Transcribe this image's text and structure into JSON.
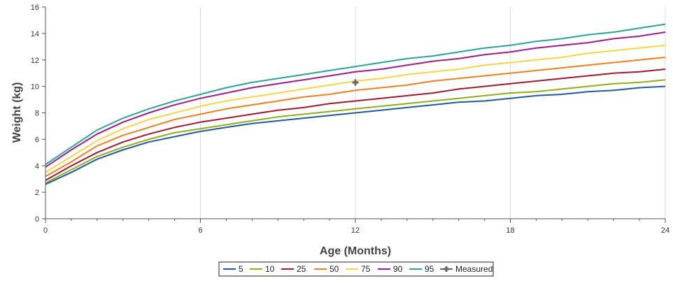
{
  "chart_data": {
    "type": "line",
    "title": "",
    "xlabel": "Age (Months)",
    "ylabel": "Weight (kg)",
    "xlim": [
      0,
      24
    ],
    "ylim": [
      0,
      16
    ],
    "x_ticks": [
      0,
      6,
      12,
      18,
      24
    ],
    "y_ticks": [
      0,
      2,
      4,
      6,
      8,
      10,
      12,
      14,
      16
    ],
    "grid": "vertical",
    "legend_position": "bottom",
    "x": [
      0,
      1,
      2,
      3,
      4,
      5,
      6,
      7,
      8,
      9,
      10,
      11,
      12,
      13,
      14,
      15,
      16,
      17,
      18,
      19,
      20,
      21,
      22,
      23,
      24
    ],
    "series": [
      {
        "name": "5",
        "color": "#1f5a9e",
        "values": [
          2.6,
          3.5,
          4.5,
          5.2,
          5.8,
          6.2,
          6.6,
          6.9,
          7.2,
          7.4,
          7.6,
          7.8,
          8.0,
          8.2,
          8.4,
          8.6,
          8.8,
          8.9,
          9.1,
          9.3,
          9.4,
          9.6,
          9.7,
          9.9,
          10.0
        ]
      },
      {
        "name": "10",
        "color": "#8fae1b",
        "values": [
          2.7,
          3.7,
          4.7,
          5.4,
          6.0,
          6.5,
          6.8,
          7.1,
          7.4,
          7.7,
          7.9,
          8.1,
          8.3,
          8.5,
          8.7,
          8.9,
          9.1,
          9.3,
          9.5,
          9.6,
          9.8,
          10.0,
          10.2,
          10.3,
          10.5
        ]
      },
      {
        "name": "25",
        "color": "#a3192e",
        "values": [
          2.9,
          4.0,
          5.0,
          5.8,
          6.4,
          6.9,
          7.3,
          7.6,
          7.9,
          8.2,
          8.4,
          8.7,
          8.9,
          9.1,
          9.3,
          9.5,
          9.8,
          10.0,
          10.2,
          10.4,
          10.6,
          10.8,
          11.0,
          11.1,
          11.3
        ]
      },
      {
        "name": "50",
        "color": "#f07f22",
        "values": [
          3.2,
          4.3,
          5.5,
          6.3,
          6.9,
          7.5,
          7.9,
          8.3,
          8.6,
          8.9,
          9.2,
          9.4,
          9.7,
          9.9,
          10.1,
          10.4,
          10.6,
          10.8,
          11.0,
          11.2,
          11.4,
          11.6,
          11.8,
          12.0,
          12.2
        ]
      },
      {
        "name": "75",
        "color": "#f8d548",
        "values": [
          3.5,
          4.7,
          5.9,
          6.8,
          7.5,
          8.0,
          8.5,
          8.9,
          9.2,
          9.5,
          9.8,
          10.1,
          10.4,
          10.6,
          10.9,
          11.1,
          11.3,
          11.6,
          11.8,
          12.0,
          12.2,
          12.5,
          12.7,
          12.9,
          13.1
        ]
      },
      {
        "name": "90",
        "color": "#9b1d87",
        "values": [
          3.9,
          5.2,
          6.4,
          7.3,
          8.0,
          8.6,
          9.1,
          9.5,
          9.9,
          10.2,
          10.5,
          10.8,
          11.1,
          11.3,
          11.6,
          11.9,
          12.1,
          12.4,
          12.6,
          12.9,
          13.1,
          13.3,
          13.6,
          13.8,
          14.1
        ]
      },
      {
        "name": "95",
        "color": "#2aa39a",
        "values": [
          4.1,
          5.4,
          6.7,
          7.6,
          8.3,
          8.9,
          9.4,
          9.9,
          10.3,
          10.6,
          10.9,
          11.2,
          11.5,
          11.8,
          12.1,
          12.3,
          12.6,
          12.9,
          13.1,
          13.4,
          13.6,
          13.9,
          14.1,
          14.4,
          14.7
        ]
      }
    ],
    "measured": {
      "name": "Measured",
      "color": "#666666",
      "points": [
        {
          "x": 12,
          "y": 10.3
        }
      ]
    }
  }
}
